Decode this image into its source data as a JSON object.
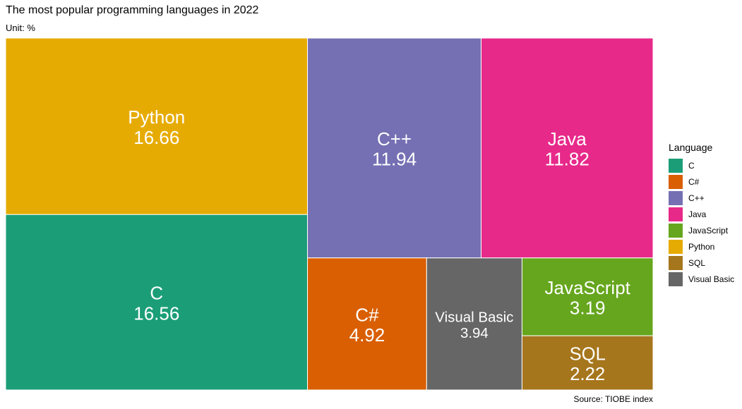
{
  "chart_data": {
    "type": "treemap",
    "title": "The most popular programming languages in 2022",
    "subtitle": "Unit: %",
    "caption": "Source: TIOBE index",
    "legend_title": "Language",
    "legend_position": "right",
    "items": [
      {
        "name": "C",
        "value": 16.56,
        "color": "#1b9e77"
      },
      {
        "name": "C#",
        "value": 4.92,
        "color": "#d95f02"
      },
      {
        "name": "C++",
        "value": 11.94,
        "color": "#7570b3"
      },
      {
        "name": "Java",
        "value": 11.82,
        "color": "#e7298a"
      },
      {
        "name": "JavaScript",
        "value": 3.19,
        "color": "#66a61e"
      },
      {
        "name": "Python",
        "value": 16.66,
        "color": "#e6ab02"
      },
      {
        "name": "SQL",
        "value": 2.22,
        "color": "#a6761d"
      },
      {
        "name": "Visual Basic",
        "value": 3.94,
        "color": "#666666"
      }
    ]
  }
}
